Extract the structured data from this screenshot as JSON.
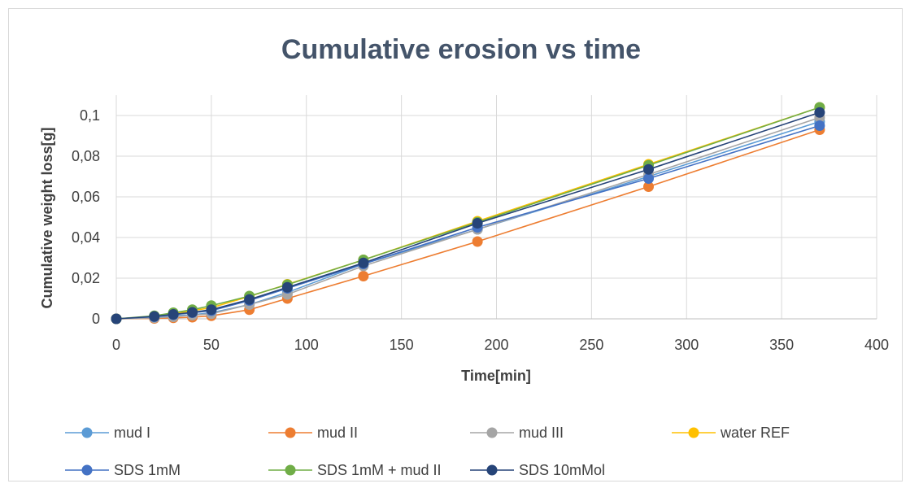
{
  "chart_data": {
    "type": "line",
    "title": "Cumulative erosion vs time",
    "xlabel": "Time[min]",
    "ylabel": "Cumulative weight loss[g]",
    "xlim": [
      0,
      400
    ],
    "ylim": [
      0,
      0.11
    ],
    "x_ticks": [
      {
        "value": 0,
        "label": "0"
      },
      {
        "value": 50,
        "label": "50"
      },
      {
        "value": 100,
        "label": "100"
      },
      {
        "value": 150,
        "label": "150"
      },
      {
        "value": 200,
        "label": "200"
      },
      {
        "value": 250,
        "label": "250"
      },
      {
        "value": 300,
        "label": "300"
      },
      {
        "value": 350,
        "label": "350"
      },
      {
        "value": 400,
        "label": "400"
      }
    ],
    "y_ticks": [
      {
        "value": 0,
        "label": "0"
      },
      {
        "value": 0.02,
        "label": "0,02"
      },
      {
        "value": 0.04,
        "label": "0,04"
      },
      {
        "value": 0.06,
        "label": "0,06"
      },
      {
        "value": 0.08,
        "label": "0,08"
      },
      {
        "value": 0.1,
        "label": "0,1"
      }
    ],
    "grid": true,
    "legend_position": "bottom",
    "x": [
      0,
      20,
      30,
      40,
      50,
      70,
      90,
      130,
      190,
      280,
      370
    ],
    "series": [
      {
        "name": "mud I",
        "color": "#5b9bd5",
        "values": [
          0,
          0.0008,
          0.0015,
          0.002,
          0.003,
          0.007,
          0.013,
          0.027,
          0.044,
          0.07,
          0.097
        ]
      },
      {
        "name": "mud II",
        "color": "#ed7d31",
        "values": [
          0,
          0.0002,
          0.0005,
          0.0008,
          0.0015,
          0.0045,
          0.01,
          0.021,
          0.038,
          0.065,
          0.093
        ]
      },
      {
        "name": "mud III",
        "color": "#a5a5a5",
        "values": [
          0,
          0.0005,
          0.001,
          0.0018,
          0.0025,
          0.007,
          0.012,
          0.026,
          0.044,
          0.071,
          0.099
        ]
      },
      {
        "name": "water REF",
        "color": "#ffc000",
        "values": [
          0,
          0.0012,
          0.0025,
          0.004,
          0.0055,
          0.011,
          0.017,
          0.029,
          0.048,
          0.076,
          0.104
        ]
      },
      {
        "name": "SDS 1mM",
        "color": "#4472c4",
        "values": [
          0,
          0.001,
          0.002,
          0.003,
          0.004,
          0.009,
          0.015,
          0.027,
          0.045,
          0.069,
          0.095
        ]
      },
      {
        "name": "SDS 1mM + mud II",
        "color": "#70ad47",
        "values": [
          0,
          0.0015,
          0.003,
          0.0045,
          0.0065,
          0.0112,
          0.0168,
          0.029,
          0.0475,
          0.0755,
          0.104
        ]
      },
      {
        "name": "SDS 10mMol",
        "color": "#264478",
        "values": [
          0,
          0.0012,
          0.0022,
          0.0032,
          0.0045,
          0.0095,
          0.0155,
          0.0275,
          0.047,
          0.0735,
          0.1015
        ]
      }
    ]
  }
}
